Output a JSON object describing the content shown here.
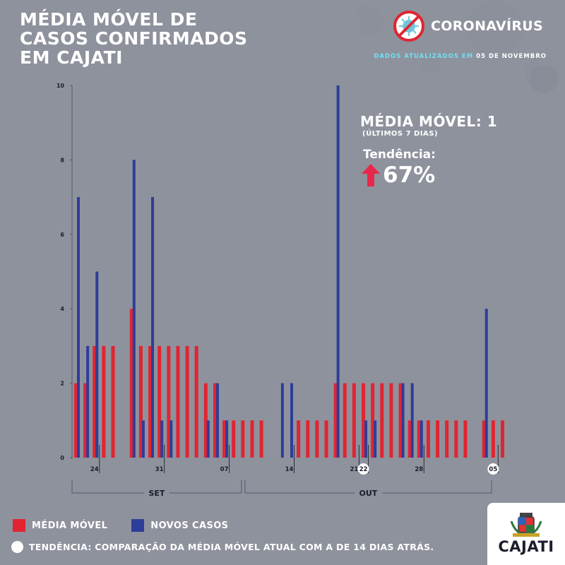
{
  "header": {
    "title_lines": [
      "MÉDIA MÓVEL DE",
      "CASOS CONFIRMADOS",
      "EM CAJATI"
    ],
    "brand": "CORONAVÍRUS",
    "updated_prefix": "DADOS ATUALIZADOS EM",
    "updated_date": "05 DE NOVEMBRO"
  },
  "summary": {
    "moving_average_label": "MÉDIA MÓVEL: 1",
    "moving_average_sub": "(ÚLTIMOS 7 DIAS)",
    "trend_label": "Tendência:",
    "trend_value": "67%",
    "trend_direction": "up"
  },
  "legend": {
    "media_movel": "MÉDIA MÓVEL",
    "novos_casos": "NOVOS CASOS",
    "note": "TENDÊNCIA: COMPARAÇÃO DA MÉDIA MÓVEL ATUAL COM A DE 14 DIAS ATRÁS."
  },
  "logo": {
    "text": "CAJATI"
  },
  "colors": {
    "background": "#8e929d",
    "media_movel": "#e02531",
    "novos_casos": "#2e3d99",
    "accent": "#6fe0f2",
    "trend_arrow": "#e8284a"
  },
  "chart_data": {
    "type": "bar",
    "title": "",
    "xlabel": "",
    "ylabel": "",
    "ylim": [
      0,
      10
    ],
    "y_ticks": [
      0,
      2,
      4,
      6,
      8,
      10
    ],
    "x_ticks": [
      {
        "label": "24",
        "day": 2
      },
      {
        "label": "31",
        "day": 9
      },
      {
        "label": "07",
        "day": 16
      },
      {
        "label": "14",
        "day": 23
      },
      {
        "label": "21",
        "day": 30
      },
      {
        "label": "22",
        "day": 31,
        "highlight": true
      },
      {
        "label": "28",
        "day": 37
      },
      {
        "label": "05",
        "day": 45,
        "highlight": true
      }
    ],
    "months": [
      {
        "label": "SET",
        "from_day": 0,
        "to_day": 18
      },
      {
        "label": "OUT",
        "from_day": 18,
        "to_day": 45
      }
    ],
    "series": [
      {
        "name": "MÉDIA MÓVEL",
        "values": [
          2,
          2,
          3,
          3,
          3,
          0,
          4,
          3,
          3,
          3,
          3,
          3,
          3,
          3,
          2,
          2,
          1,
          1,
          1,
          1,
          1,
          0,
          0,
          0,
          1,
          1,
          1,
          1,
          2,
          2,
          2,
          2,
          2,
          2,
          2,
          2,
          1,
          1,
          1,
          1,
          1,
          1,
          1,
          0,
          1,
          1,
          1
        ]
      },
      {
        "name": "NOVOS CASOS",
        "values": [
          7,
          3,
          5,
          0,
          0,
          0,
          8,
          1,
          7,
          1,
          1,
          0,
          0,
          0,
          1,
          2,
          1,
          0,
          0,
          0,
          0,
          0,
          2,
          2,
          0,
          0,
          0,
          0,
          10,
          0,
          0,
          1,
          1,
          0,
          0,
          2,
          2,
          1,
          0,
          0,
          0,
          0,
          0,
          0,
          4,
          0,
          0
        ]
      }
    ]
  }
}
